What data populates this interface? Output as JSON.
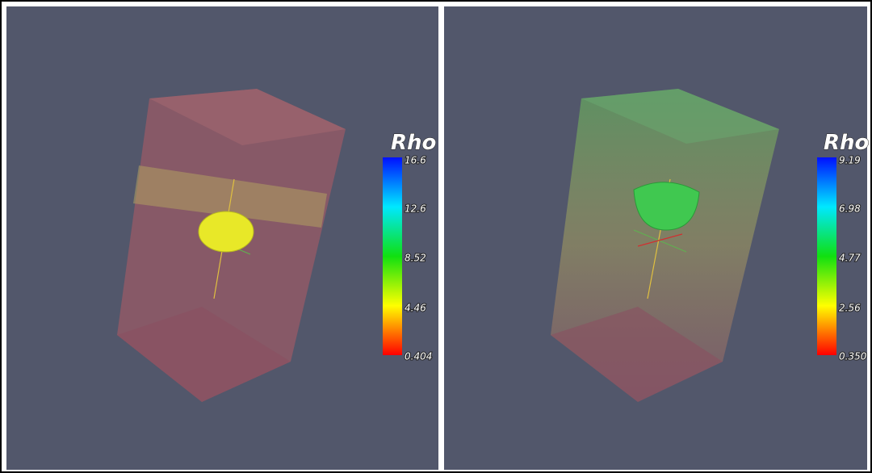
{
  "panels": [
    {
      "legend": {
        "title": "Rho",
        "labels": [
          "16.6",
          "12.6",
          "8.52",
          "4.46",
          "0.404"
        ]
      }
    },
    {
      "legend": {
        "title": "Rho",
        "labels": [
          "9.19",
          "6.98",
          "4.77",
          "2.56",
          "0.350"
        ]
      }
    }
  ]
}
